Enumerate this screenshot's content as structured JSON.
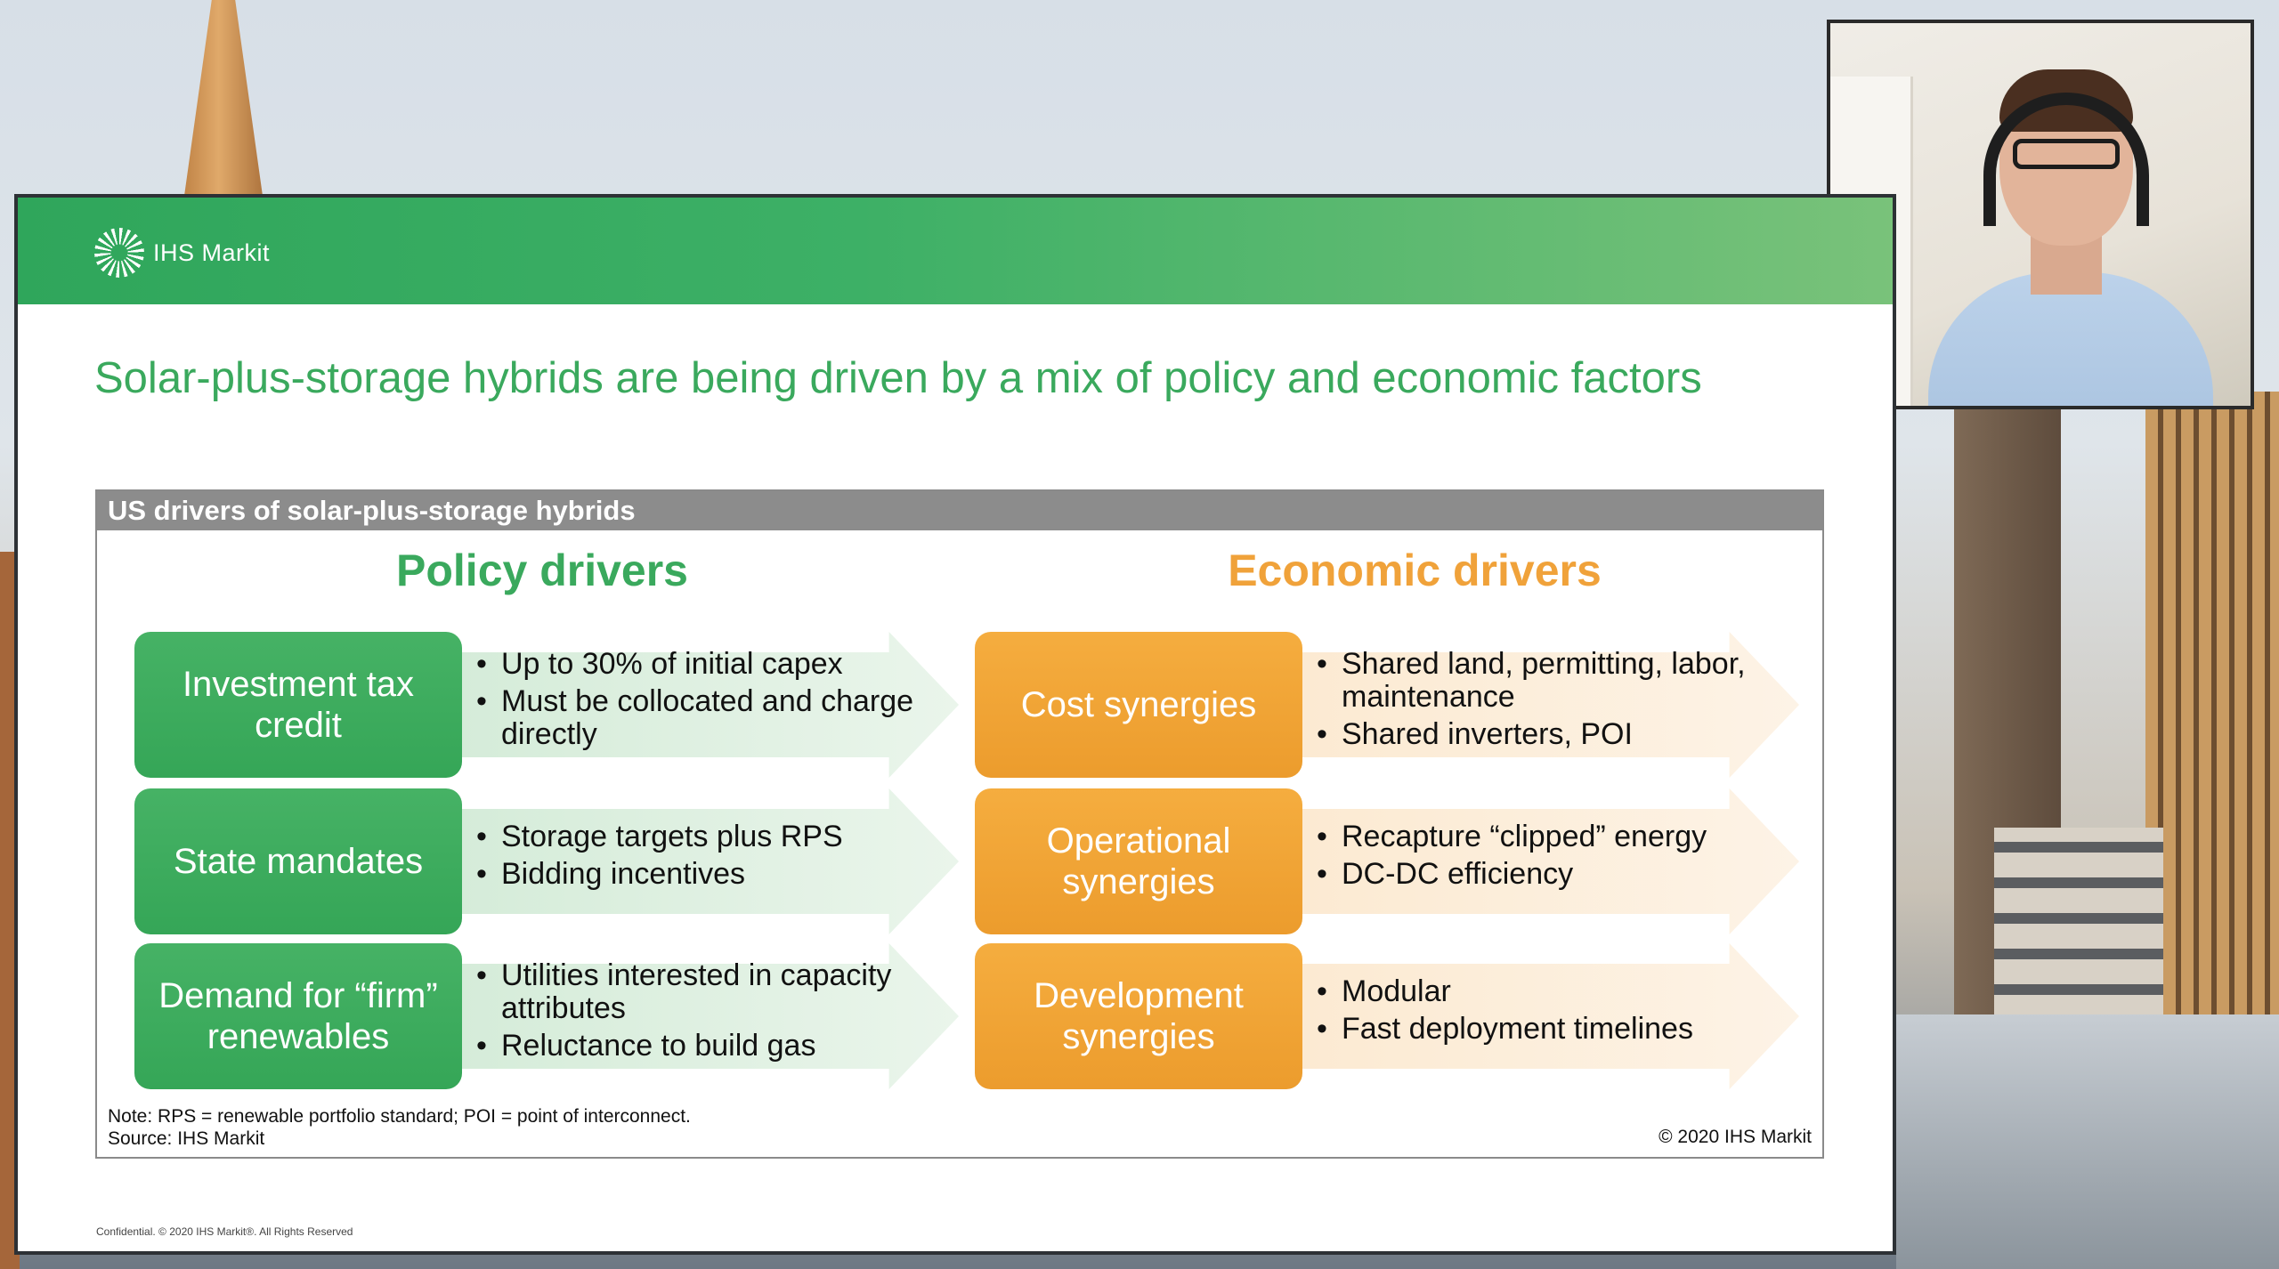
{
  "slide": {
    "logo_text": "IHS Markit",
    "title": "Solar-plus-storage hybrids are being driven by a mix of policy and economic factors",
    "figure_title": "US drivers of solar-plus-storage hybrids",
    "policy_heading": "Policy drivers",
    "economic_heading": "Economic drivers",
    "policy_drivers": [
      {
        "label": "Investment tax credit",
        "bullets": [
          "Up to 30% of initial capex",
          "Must be collocated and charge directly"
        ]
      },
      {
        "label": "State mandates",
        "bullets": [
          "Storage targets plus RPS",
          "Bidding incentives"
        ]
      },
      {
        "label": "Demand for “firm” renewables",
        "bullets": [
          "Utilities interested in capacity attributes",
          "Reluctance to build gas"
        ]
      }
    ],
    "economic_drivers": [
      {
        "label": "Cost synergies",
        "bullets": [
          "Shared land, permitting, labor, maintenance",
          "Shared inverters, POI"
        ]
      },
      {
        "label": "Operational synergies",
        "bullets": [
          "Recapture “clipped” energy",
          "DC-DC efficiency"
        ]
      },
      {
        "label": "Development synergies",
        "bullets": [
          "Modular",
          "Fast deployment timelines"
        ]
      }
    ],
    "note": "Note: RPS = renewable portfolio standard; POI = point of interconnect.",
    "source": "Source: IHS Markit",
    "copyright": "© 2020 IHS Markit",
    "confidential": "Confidential. © 2020 IHS Markit®. All Rights Reserved"
  },
  "colors": {
    "policy_green": "#3aa95d",
    "economic_orange": "#f0a23a",
    "header_gray": "#8c8c8c"
  },
  "icons": {
    "logo": "ihs-markit-starburst-icon"
  }
}
